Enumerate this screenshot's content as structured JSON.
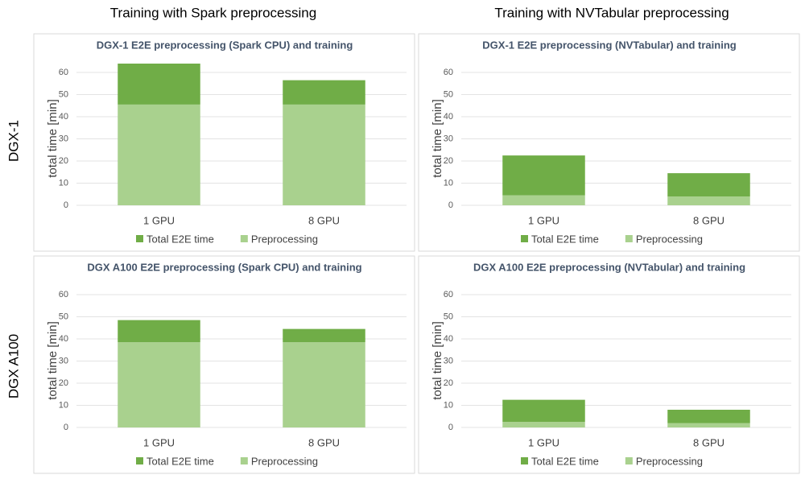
{
  "column_titles": [
    "Training with Spark preprocessing",
    "Training with NVTabular  preprocessing"
  ],
  "row_labels": [
    "DGX-1",
    "DGX A100"
  ],
  "chart_data": [
    {
      "type": "stacked_bar",
      "title": "DGX-1 E2E preprocessing  (Spark CPU) and training",
      "ylabel": "total time [min]",
      "categories": [
        "1 GPU",
        "8 GPU"
      ],
      "series": [
        {
          "name": "Preprocessing",
          "color": "#a9d18e",
          "values": [
            45.5,
            45.5
          ]
        },
        {
          "name": "Total E2E time",
          "color": "#70ad47",
          "values": [
            18.5,
            11
          ]
        }
      ],
      "ylim": [
        0,
        60
      ],
      "yticks": [
        0,
        10,
        20,
        30,
        40,
        50,
        60
      ],
      "grid": true
    },
    {
      "type": "stacked_bar",
      "title": "DGX-1 E2E preprocessing (NVTabular) and training",
      "ylabel": "total time [min]",
      "categories": [
        "1 GPU",
        "8 GPU"
      ],
      "series": [
        {
          "name": "Preprocessing",
          "color": "#a9d18e",
          "values": [
            4.5,
            4
          ]
        },
        {
          "name": "Total E2E time",
          "color": "#70ad47",
          "values": [
            18,
            10.5
          ]
        }
      ],
      "ylim": [
        0,
        60
      ],
      "yticks": [
        0,
        10,
        20,
        30,
        40,
        50,
        60
      ],
      "grid": true
    },
    {
      "type": "stacked_bar",
      "title": "DGX A100 E2E preprocessing  (Spark CPU) and training",
      "ylabel": "total time [min]",
      "categories": [
        "1 GPU",
        "8 GPU"
      ],
      "series": [
        {
          "name": "Preprocessing",
          "color": "#a9d18e",
          "values": [
            38.5,
            38.5
          ]
        },
        {
          "name": "Total E2E time",
          "color": "#70ad47",
          "values": [
            10,
            6
          ]
        }
      ],
      "ylim": [
        0,
        60
      ],
      "yticks": [
        0,
        10,
        20,
        30,
        40,
        50,
        60
      ],
      "grid": true
    },
    {
      "type": "stacked_bar",
      "title": "DGX A100 E2E preprocessing  (NVTabular) and training",
      "ylabel": "total time [min]",
      "categories": [
        "1 GPU",
        "8 GPU"
      ],
      "series": [
        {
          "name": "Preprocessing",
          "color": "#a9d18e",
          "values": [
            2.5,
            2
          ]
        },
        {
          "name": "Total E2E time",
          "color": "#70ad47",
          "values": [
            10,
            6
          ]
        }
      ],
      "ylim": [
        0,
        60
      ],
      "yticks": [
        0,
        10,
        20,
        30,
        40,
        50,
        60
      ],
      "grid": true
    }
  ]
}
